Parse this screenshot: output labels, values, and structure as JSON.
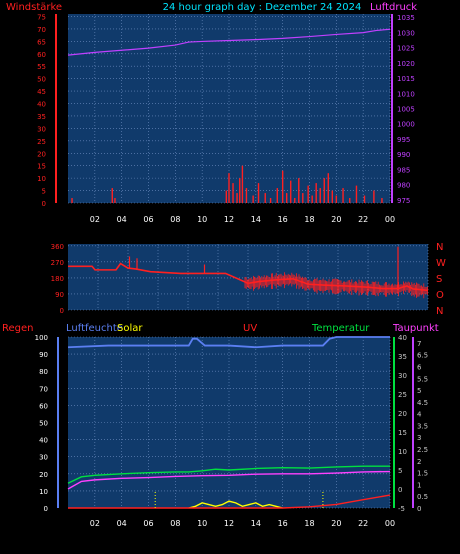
{
  "header": {
    "left_label": "Windstärke",
    "title": "24 hour graph day : Dezember 24 2024",
    "right_label": "Luftdruck"
  },
  "colors": {
    "background": "#000000",
    "plot_bg": "#103a6b",
    "grid": "#6f8fc4",
    "wind": "#ff2020",
    "pressure": "#c040ff",
    "direction": "#ff2020",
    "humidity": "#5b7ff2",
    "solar": "#ffff00",
    "temperature": "#00e040",
    "dewpoint": "#ff40ff",
    "rain": "#ff2020",
    "uv": "#ff0000",
    "title": "#00e5ff",
    "axis_text": "#ffffff",
    "tick_text": "#c8c8c8"
  },
  "x_axis": {
    "tick_labels": [
      "02",
      "04",
      "06",
      "08",
      "10",
      "12",
      "14",
      "16",
      "18",
      "20",
      "22",
      "00"
    ]
  },
  "chart_data": [
    {
      "type": "line",
      "name": "wind-pressure",
      "y_left": {
        "label": "Windstärke",
        "ticks": [
          0,
          5,
          10,
          15,
          20,
          25,
          30,
          35,
          40,
          45,
          50,
          55,
          60,
          65,
          70,
          75
        ],
        "ylim": [
          0,
          76
        ]
      },
      "y_right": {
        "label": "Luftdruck",
        "ticks": [
          975,
          980,
          985,
          990,
          995,
          1000,
          1005,
          1010,
          1015,
          1020,
          1025,
          1030,
          1035
        ],
        "ylim": [
          974,
          1036
        ]
      },
      "x_hours": [
        0,
        12
      ],
      "series": [
        {
          "axis": "right",
          "kind": "line",
          "x": [
            0,
            2,
            4,
            6,
            8,
            9,
            10,
            12,
            14,
            16,
            18,
            20,
            22,
            23,
            24
          ],
          "values": [
            1022.5,
            1023.4,
            1024.1,
            1024.8,
            1025.8,
            1026.8,
            1027.0,
            1027.3,
            1027.6,
            1028.0,
            1028.6,
            1029.3,
            1029.9,
            1030.6,
            1031.0
          ]
        },
        {
          "axis": "left",
          "kind": "spikes",
          "x": [
            0.3,
            3.3,
            3.5,
            11.8,
            12.0,
            12.3,
            12.6,
            12.8,
            13.0,
            13.3,
            13.8,
            14.2,
            14.7,
            15.1,
            15.6,
            16.0,
            16.3,
            16.6,
            16.9,
            17.2,
            17.5,
            17.9,
            18.2,
            18.5,
            18.8,
            19.1,
            19.4,
            19.7,
            20.0,
            20.5,
            21.0,
            21.5,
            22.1,
            22.8,
            23.4
          ],
          "values": [
            2,
            6,
            2,
            5,
            12,
            8,
            4,
            10,
            15,
            6,
            3,
            8,
            4,
            2,
            6,
            13,
            4,
            9,
            2,
            10,
            4,
            7,
            3,
            8,
            6,
            10,
            12,
            5,
            3,
            6,
            2,
            7,
            3,
            5,
            2
          ]
        }
      ]
    },
    {
      "type": "scatter",
      "name": "wind-direction",
      "y_left": {
        "ticks": [
          0,
          90,
          180,
          270,
          360
        ],
        "ylim": [
          0,
          370
        ]
      },
      "right_labels": [
        "N",
        "W",
        "S",
        "O",
        "N"
      ],
      "series": [
        {
          "kind": "line",
          "x": [
            0,
            1.6,
            1.8,
            3.2,
            3.5,
            4.0,
            4.5,
            5.5,
            6.5,
            7.5,
            9.0,
            10.5,
            12.0,
            12.8,
            14.0,
            15.0,
            16.0,
            17.0,
            18.5,
            20.0,
            21.0,
            22.0,
            22.6,
            23.0,
            24.0
          ],
          "values": [
            245,
            245,
            225,
            225,
            260,
            235,
            230,
            215,
            210,
            205,
            205,
            205,
            150,
            160,
            170,
            175,
            145,
            140,
            135,
            128,
            120,
            120,
            135,
            118,
            110
          ]
        },
        {
          "kind": "spikes",
          "x": [
            4.1,
            4.6,
            9.1,
            22.0
          ],
          "values": [
            300,
            290,
            255,
            355
          ]
        }
      ]
    },
    {
      "type": "line",
      "name": "environment",
      "legend": [
        "Regen",
        "Luftfeuchte",
        "Solar",
        "UV",
        "Temperatur",
        "Taupunkt"
      ],
      "y_left": {
        "ticks": [
          0,
          10,
          20,
          30,
          40,
          50,
          60,
          70,
          80,
          90,
          100
        ],
        "ylim": [
          0,
          100
        ]
      },
      "y_mid_right": {
        "ticks": [
          -5,
          0,
          5,
          10,
          15,
          20,
          25,
          30,
          35,
          40
        ],
        "ylim": [
          -5,
          40
        ]
      },
      "y_far_right": {
        "ticks": [
          0,
          0.5,
          1,
          1.5,
          2,
          2.5,
          3,
          3.5,
          4,
          4.5,
          5,
          5.5,
          6,
          6.5,
          7
        ],
        "ylim": [
          0,
          7.25
        ]
      },
      "series": [
        {
          "name": "Luftfeuchte",
          "axis": "left",
          "x": [
            0,
            3,
            6,
            9,
            9.3,
            9.6,
            10.2,
            10.5,
            12,
            14,
            16,
            18,
            19,
            19.5,
            20,
            22,
            24
          ],
          "values": [
            94,
            95,
            95,
            95,
            99,
            99,
            95,
            95,
            95,
            94,
            95,
            95,
            95,
            99,
            100,
            100,
            100
          ]
        },
        {
          "name": "Temperatur",
          "axis": "mid_right",
          "x": [
            0,
            1,
            2,
            4,
            6,
            8,
            9,
            10,
            11,
            12,
            14,
            16,
            18,
            20,
            22,
            24
          ],
          "values": [
            1.5,
            3.2,
            3.6,
            4.0,
            4.3,
            4.5,
            4.5,
            4.8,
            5.2,
            5.0,
            5.4,
            5.6,
            5.5,
            5.8,
            6.0,
            6.0
          ]
        },
        {
          "name": "Taupunkt",
          "axis": "mid_right",
          "x": [
            0,
            1,
            2,
            4,
            6,
            8,
            10,
            12,
            14,
            16,
            18,
            20,
            22,
            24
          ],
          "values": [
            0.0,
            2.0,
            2.4,
            2.8,
            3.0,
            3.3,
            3.5,
            3.6,
            3.9,
            4.0,
            4.0,
            4.2,
            4.5,
            4.6
          ]
        },
        {
          "name": "Solar",
          "axis": "left",
          "x": [
            9,
            9.5,
            10,
            10.5,
            11,
            11.5,
            12,
            12.5,
            13,
            13.5,
            14,
            14.5,
            15,
            15.5,
            16
          ],
          "values": [
            0,
            1,
            3,
            2,
            1,
            2,
            4,
            3,
            1,
            2,
            3,
            1,
            2,
            1,
            0
          ]
        },
        {
          "name": "Regen",
          "axis": "far_right",
          "x": [
            0,
            16,
            18,
            20,
            22,
            24
          ],
          "values": [
            0,
            0,
            0.05,
            0.15,
            0.35,
            0.55
          ]
        }
      ],
      "markers": {
        "x": [
          6.5,
          19.0
        ]
      }
    }
  ]
}
